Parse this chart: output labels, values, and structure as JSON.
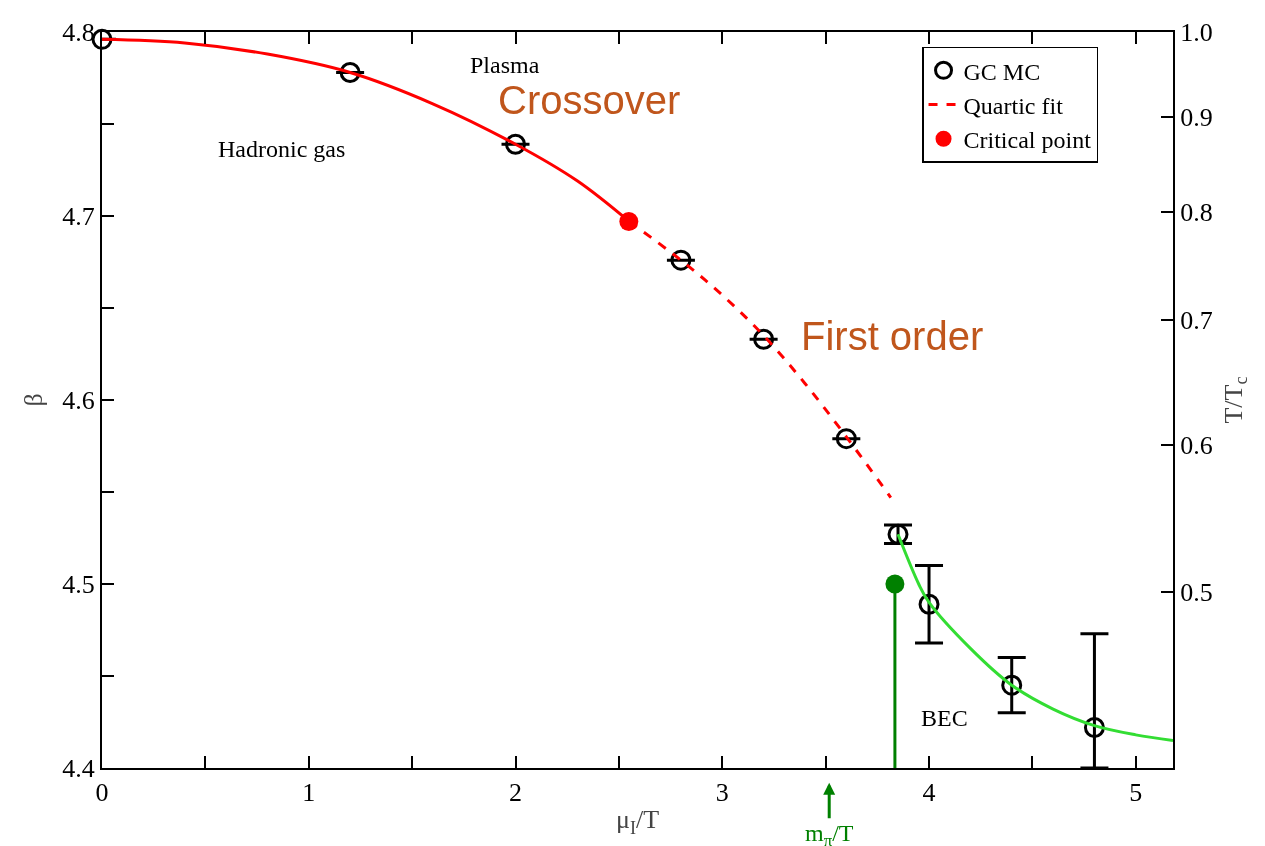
{
  "chart_data": {
    "type": "scatter",
    "xlabel": "μ$_{I}$/T",
    "ylabel": "β",
    "y2label": "T/T$_{c}$",
    "xlim": [
      0,
      5.18
    ],
    "xticks": [
      0,
      {
        "value": 0.5,
        "label": null
      },
      1,
      {
        "value": 1.5,
        "label": null
      },
      2,
      {
        "value": 2.5,
        "label": null
      },
      3,
      {
        "value": 3.5,
        "label": null
      },
      4,
      {
        "value": 4.5,
        "label": null
      },
      5
    ],
    "ylim": [
      4.4,
      4.8
    ],
    "yticks": [
      4.4,
      {
        "value": 4.45,
        "label": null
      },
      4.5,
      {
        "value": 4.55,
        "label": null
      },
      4.6,
      {
        "value": 4.65,
        "label": null
      },
      4.7,
      {
        "value": 4.75,
        "label": null
      },
      4.8
    ],
    "y2lim": [
      0.402,
      1
    ],
    "log": "y2",
    "y2ticks": [
      0.5,
      0.6,
      0.7,
      0.8,
      0.9,
      {
        "value": 1,
        "label": "1.0"
      }
    ],
    "grid": false,
    "legend": "top right",
    "series": [
      {
        "name": "GC MC",
        "color": "#000000",
        "marker": "circle",
        "x": [
          0,
          1.2,
          2.0,
          2.8,
          3.2,
          3.6,
          3.85,
          4.0,
          4.4,
          4.8
        ],
        "values": [
          4.796,
          4.778,
          4.739,
          4.676,
          4.633,
          4.579,
          4.527,
          4.489,
          4.445,
          4.422
        ],
        "errors": [
          null,
          null,
          null,
          null,
          null,
          null,
          0.005,
          0.021,
          0.015,
          [
            4.4,
            4.473
          ]
        ]
      },
      {
        "type": "line",
        "color": "#ff0000",
        "line_style": "solid",
        "x": [
          0,
          0.4,
          0.8,
          1.2,
          1.6,
          2.0,
          2.3,
          2.55
        ],
        "values": [
          4.796,
          4.794,
          4.788,
          4.778,
          4.761,
          4.739,
          4.719,
          4.697
        ]
      },
      {
        "type": "line",
        "name": "Quartic fit",
        "color": "#ff0000",
        "line_style": "dashed",
        "x": [
          2.55,
          2.8,
          3.0,
          3.2,
          3.4,
          3.6,
          3.815
        ],
        "values": [
          4.697,
          4.676,
          4.657,
          4.635,
          4.609,
          4.58,
          4.547
        ]
      },
      {
        "type": "line",
        "color": "#33dd33",
        "line_style": "solid",
        "x": [
          3.85,
          3.95,
          4.0,
          4.2,
          4.4,
          4.6,
          4.8,
          5.0,
          5.18
        ],
        "values": [
          4.527,
          4.5,
          4.49,
          4.465,
          4.445,
          4.432,
          4.423,
          4.418,
          4.415
        ]
      },
      {
        "type": "line",
        "color": "#008000",
        "line_style": "solid",
        "x": [
          3.835,
          3.835
        ],
        "values": [
          4.5,
          4.4
        ]
      },
      {
        "color": "#008000",
        "marker": "circle",
        "x": [
          3.835
        ],
        "values": [
          4.5
        ]
      },
      {
        "name": "Critical point",
        "color": "#ff0000",
        "marker": "circle",
        "x": [
          2.548
        ],
        "values": [
          4.697
        ]
      }
    ],
    "annotations": [
      "Plasma",
      "Crossover",
      "Hadronic gas",
      "First order",
      "BEC",
      "m$_{π}$/T"
    ]
  }
}
